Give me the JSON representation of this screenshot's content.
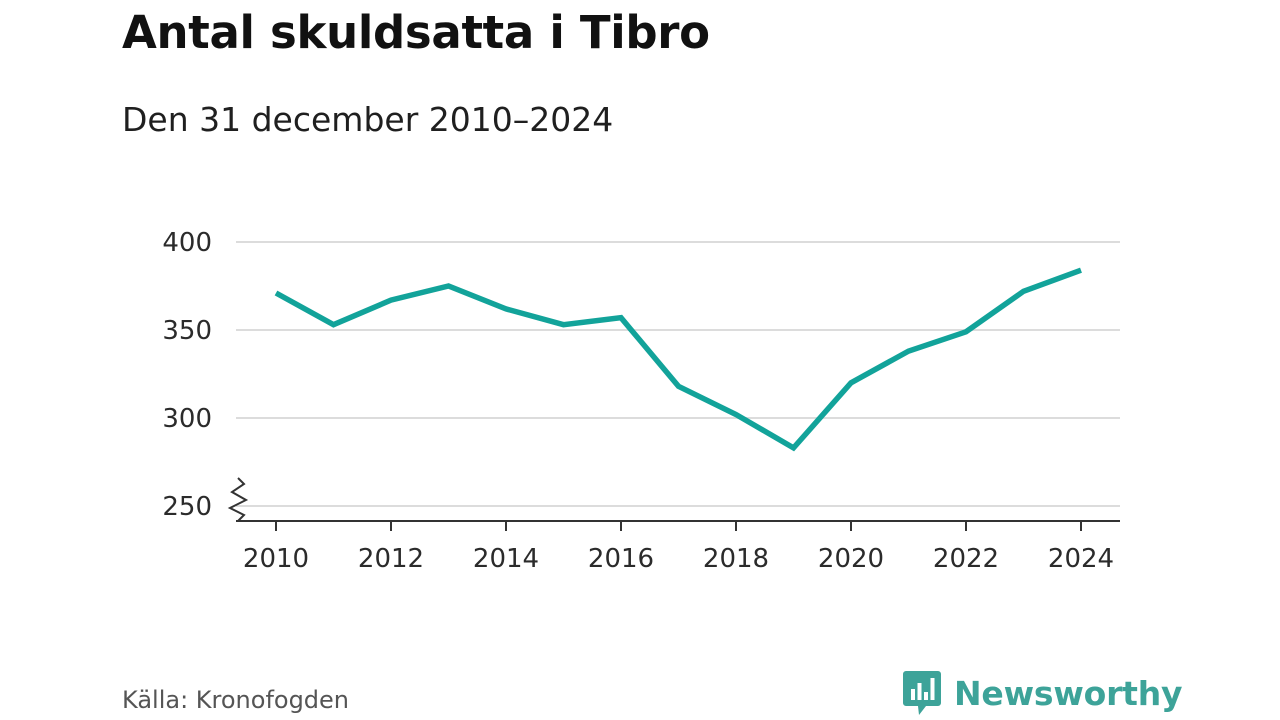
{
  "title": "Antal skuldsatta i Tibro",
  "subtitle": "Den 31 december 2010–2024",
  "source": "Källa: Kronofogden",
  "brand": {
    "name": "Newsworthy",
    "icon": "bar-chart-speech-bubble-icon"
  },
  "colors": {
    "line": "#12a39a",
    "grid": "#dcdcdc",
    "axis": "#333333",
    "brand": "#3da399"
  },
  "chart_data": {
    "type": "line",
    "x": [
      2010,
      2011,
      2012,
      2013,
      2014,
      2015,
      2016,
      2017,
      2018,
      2019,
      2020,
      2021,
      2022,
      2023,
      2024
    ],
    "series": [
      {
        "values": [
          371,
          353,
          367,
          375,
          362,
          353,
          357,
          318,
          302,
          283,
          320,
          338,
          349,
          372,
          384
        ]
      }
    ],
    "xticks": [
      "2010",
      "2012",
      "2014",
      "2016",
      "2018",
      "2020",
      "2022",
      "2024"
    ],
    "yticks": [
      "250",
      "300",
      "350",
      "400"
    ],
    "ylim": [
      250,
      400
    ],
    "xlim": [
      2010,
      2024
    ],
    "y_axis_break": true,
    "grid": true
  }
}
